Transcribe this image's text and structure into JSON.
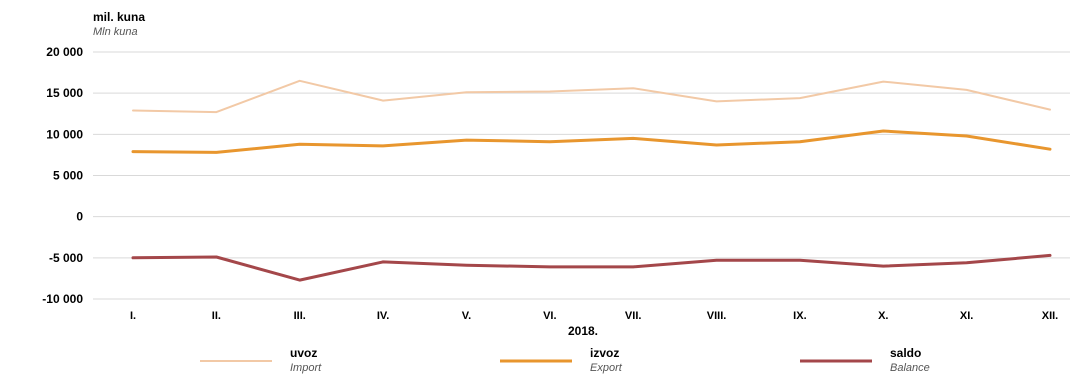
{
  "chart_data": {
    "type": "line",
    "ylabel": "mil. kuna",
    "ylabel_en": "Mln kuna",
    "xlabel": "2018.",
    "categories": [
      "I.",
      "II.",
      "III.",
      "IV.",
      "V.",
      "VI.",
      "VII.",
      "VIII.",
      "IX.",
      "X.",
      "XI.",
      "XII."
    ],
    "yticks": [
      20000,
      15000,
      10000,
      5000,
      0,
      -5000,
      -10000
    ],
    "ytick_labels": [
      "20 000",
      "15 000",
      "10 000",
      "5 000",
      "0",
      "-5 000",
      "-10 000"
    ],
    "ylim": [
      -10000,
      20000
    ],
    "grid": true,
    "legend_position": "bottom",
    "series": [
      {
        "name": "uvoz",
        "name_en": "Import",
        "color": "#f2c9a6",
        "values": [
          12900,
          12700,
          16500,
          14100,
          15100,
          15200,
          15600,
          14000,
          14400,
          16400,
          15400,
          13000
        ]
      },
      {
        "name": "izvoz",
        "name_en": "Export",
        "color": "#e8962e",
        "values": [
          7900,
          7800,
          8800,
          8600,
          9300,
          9100,
          9500,
          8700,
          9100,
          10400,
          9800,
          8200
        ]
      },
      {
        "name": "saldo",
        "name_en": "Balance",
        "color": "#a4474a",
        "values": [
          -5000,
          -4900,
          -7700,
          -5500,
          -5900,
          -6100,
          -6100,
          -5300,
          -5300,
          -6000,
          -5600,
          -4700
        ]
      }
    ]
  }
}
